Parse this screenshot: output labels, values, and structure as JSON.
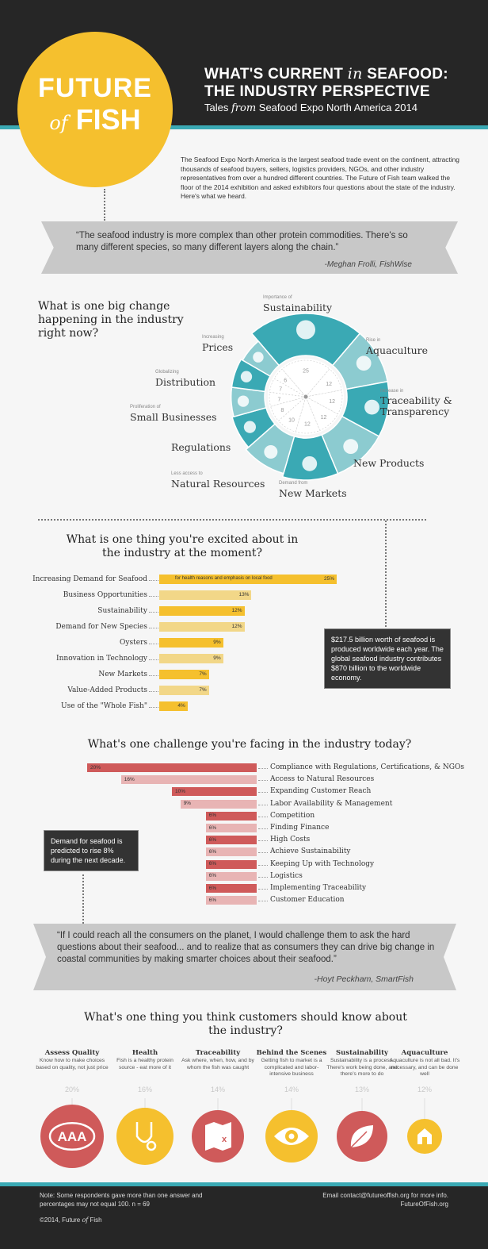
{
  "header": {
    "logo_line1": "FUTURE",
    "logo_of": "of",
    "logo_line2": "FISH",
    "title_line1_a": "WHAT'S CURRENT ",
    "title_line1_in": "in",
    "title_line1_b": " SEAFOOD:",
    "title_line2": "THE INDUSTRY PERSPECTIVE",
    "subtitle_a": "Tales ",
    "subtitle_from": "from",
    "subtitle_b": " Seafood Expo North America 2014"
  },
  "intro": "The Seafood Expo North America is the largest seafood trade event on the continent, attracting thousands of seafood buyers, sellers, logistics providers, NGOs, and other industry representatives from over a hundred different countries.  The Future of Fish team walked the floor of the 2014 exhibition and asked exhibitors four questions about the state of the industry.  Here's what we heard.",
  "quote1": {
    "text": "“The seafood industry is more complex than other protein commodities. There's so many different species, so many different layers along the chain.”",
    "by": "-Meghan Frolli, FishWise"
  },
  "quote2": {
    "text": "“If I could reach all the consumers on the planet, I would challenge them to ask the hard questions about their seafood... and to realize that as consumers they can drive big change in coastal communities by making smarter choices about their seafood.”",
    "by": "-Hoyt Peckham, SmartFish"
  },
  "chart_data": [
    {
      "type": "pie",
      "title": "What is one big change happening in the industry right now?",
      "slices": [
        {
          "small": "Importance of",
          "label": "Sustainability",
          "value": 25
        },
        {
          "small": "Rise in",
          "label": "Aquaculture",
          "value": 12
        },
        {
          "small": "Increase in",
          "label": "Traceability & Transparency",
          "value": 12
        },
        {
          "small": "",
          "label": "New Products",
          "value": 12
        },
        {
          "small": "Demand from",
          "label": "New Markets",
          "value": 12
        },
        {
          "small": "Less access to",
          "label": "Natural Resources",
          "value": 10
        },
        {
          "small": "",
          "label": "Regulations",
          "value": 8
        },
        {
          "small": "Proliferation of",
          "label": "Small Businesses",
          "value": 7
        },
        {
          "small": "Globalizing",
          "label": "Distribution",
          "value": 7
        },
        {
          "small": "Increasing",
          "label": "Prices",
          "value": 6
        }
      ]
    },
    {
      "type": "bar",
      "title": "What is one thing you're excited about in the industry at the moment?",
      "bars": [
        {
          "label": "Increasing Demand for Seafood",
          "value": 25,
          "display": "25%",
          "note": "for health reasons and emphasis on local food"
        },
        {
          "label": "Business Opportunities",
          "value": 13,
          "display": "13%"
        },
        {
          "label": "Sustainability",
          "value": 12,
          "display": "12%"
        },
        {
          "label": "Demand for New Species",
          "value": 12,
          "display": "12%"
        },
        {
          "label": "Oysters",
          "value": 9,
          "display": "9%"
        },
        {
          "label": "Innovation in Technology",
          "value": 9,
          "display": "9%"
        },
        {
          "label": "New Markets",
          "value": 7,
          "display": "7%"
        },
        {
          "label": "Value-Added Products",
          "value": 7,
          "display": "7%"
        },
        {
          "label": "Use of the \"Whole Fish\"",
          "value": 4,
          "display": "4%"
        }
      ]
    },
    {
      "type": "bar",
      "title": "What's one challenge you're facing in the industry today?",
      "bars": [
        {
          "label": "Compliance with Regulations, Certifications, & NGOs",
          "value": 20,
          "display": "20%"
        },
        {
          "label": "Access to Natural Resources",
          "value": 16,
          "display": "16%"
        },
        {
          "label": "Expanding Customer Reach",
          "value": 10,
          "display": "10%"
        },
        {
          "label": "Labor Availability & Management",
          "value": 9,
          "display": "9%"
        },
        {
          "label": "Competition",
          "value": 6,
          "display": "6%"
        },
        {
          "label": "Finding Finance",
          "value": 6,
          "display": "6%"
        },
        {
          "label": "High Costs",
          "value": 6,
          "display": "6%"
        },
        {
          "label": "Achieve Sustainability",
          "value": 6,
          "display": "6%"
        },
        {
          "label": "Keeping Up with Technology",
          "value": 6,
          "display": "6%"
        },
        {
          "label": "Logistics",
          "value": 6,
          "display": "6%"
        },
        {
          "label": "Implementing Traceability",
          "value": 6,
          "display": "6%"
        },
        {
          "label": "Customer Education",
          "value": 6,
          "display": "6%"
        }
      ]
    },
    {
      "type": "table",
      "title": "What's one thing you think customers should know about the industry?",
      "items": [
        {
          "title": "Assess Quality",
          "desc": "Know how to make choices based on quality, not just price",
          "pct": "20%",
          "icon": "aaa-icon"
        },
        {
          "title": "Health",
          "desc": "Fish is a healthy protein source - eat more of it",
          "pct": "16%",
          "icon": "stethoscope-icon"
        },
        {
          "title": "Traceability",
          "desc": "Ask where, when, how, and by whom the fish was caught",
          "pct": "14%",
          "icon": "map-icon"
        },
        {
          "title": "Behind the Scenes",
          "desc": "Getting fish to market is a complicated and labor-intensive business",
          "pct": "14%",
          "icon": "eye-icon"
        },
        {
          "title": "Sustainability",
          "desc": "Sustainability is a process. There's work being done, and there's more to do",
          "pct": "13%",
          "icon": "leaf-icon"
        },
        {
          "title": "Aquaculture",
          "desc": "Aquaculture is not all bad. It's necessary, and can be done well",
          "pct": "12%",
          "icon": "barn-icon"
        }
      ]
    }
  ],
  "fact1": "$217.5 billion worth of seafood is produced worldwide each year. The global seafood industry contributes $870 billion to the worldwide economy.",
  "fact2": "Demand for seafood is predicted to rise 8% during the next decade.",
  "footer": {
    "note": "Note: Some respondents gave more than one answer and percentages may not equal 100.  n = 69",
    "copy_a": "©2014, Future ",
    "copy_of": "of",
    "copy_b": " Fish",
    "contact": "Email contact@futureoffish.org for more info.",
    "site": "FutureOfFish.org"
  },
  "colors": {
    "teal": "#3aa9b4",
    "teal_light": "#8ccbd0",
    "gold": "#f5c02e",
    "gold_light": "#f2d788",
    "red": "#cf5a5a",
    "red_light": "#e8b4b4",
    "dark": "#262626"
  }
}
